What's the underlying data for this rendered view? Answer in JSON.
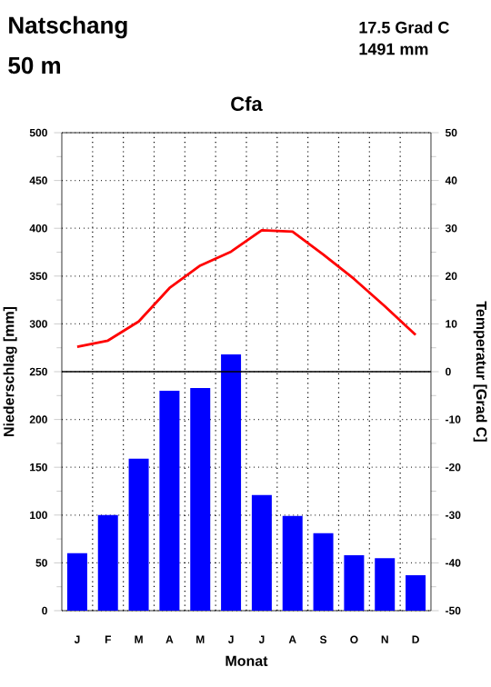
{
  "chart_data": {
    "type": "bar",
    "title": "Cfa",
    "annotations": [
      "Natschang",
      "50 m",
      "17.5 Grad C",
      "1491 mm"
    ],
    "xlabel": "Monat",
    "ylabel": "Niederschlag [mm]",
    "y2label": "Temperatur [Grad C]",
    "categories": [
      "J",
      "F",
      "M",
      "A",
      "M",
      "J",
      "J",
      "A",
      "S",
      "O",
      "N",
      "D"
    ],
    "series": [
      {
        "color": "#0000ff",
        "values": [
          60,
          100,
          159,
          230,
          233,
          268,
          121,
          99,
          81,
          58,
          55,
          37
        ]
      },
      {
        "type": "line",
        "axis": "y2",
        "color": "#ff0000",
        "values": [
          5.2,
          6.5,
          10.5,
          17.5,
          22.2,
          25.1,
          29.6,
          29.3,
          24.5,
          19.4,
          13.7,
          7.7
        ]
      }
    ],
    "ylim": [
      0,
      500
    ],
    "yticks": [
      0,
      50,
      100,
      150,
      200,
      250,
      300,
      350,
      400,
      450,
      500
    ],
    "y2lim": [
      -50,
      50
    ],
    "y2ticks": [
      -50,
      -40,
      -30,
      -20,
      -10,
      0,
      10,
      20,
      30,
      40,
      50
    ],
    "ref_lines": [
      {
        "axis": "y2",
        "value": 0
      }
    ],
    "grid": true,
    "marker": "none",
    "line_style": "solid"
  }
}
